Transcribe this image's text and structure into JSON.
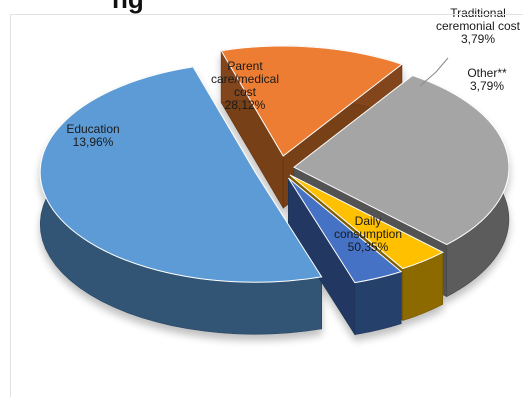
{
  "chart_data": {
    "type": "pie",
    "title": "ng",
    "three_d": true,
    "exploded": true,
    "legend": "none",
    "categories": [
      "Daily consumption",
      "Education",
      "Parent care/medical cost",
      "Traditional ceremonial cost",
      "Other**"
    ],
    "values": [
      50.35,
      13.96,
      28.12,
      3.79,
      3.79
    ],
    "data_labels": [
      "50,35%",
      "13,96%",
      "28,12%",
      "3,79%",
      "3,79%"
    ],
    "colors": [
      "#5b9bd5",
      "#ed7d31",
      "#a5a5a5",
      "#ffc000",
      "#4472c4"
    ],
    "label_lines": [
      [
        "Daily",
        "consumption",
        "50,35%"
      ],
      [
        "Education",
        "13,96%"
      ],
      [
        "Parent",
        "care/medical",
        "cost",
        "28,12%"
      ],
      [
        "Traditional",
        "ceremonial cost",
        "3,79%"
      ],
      [
        "Other**",
        "3,79%"
      ]
    ]
  }
}
